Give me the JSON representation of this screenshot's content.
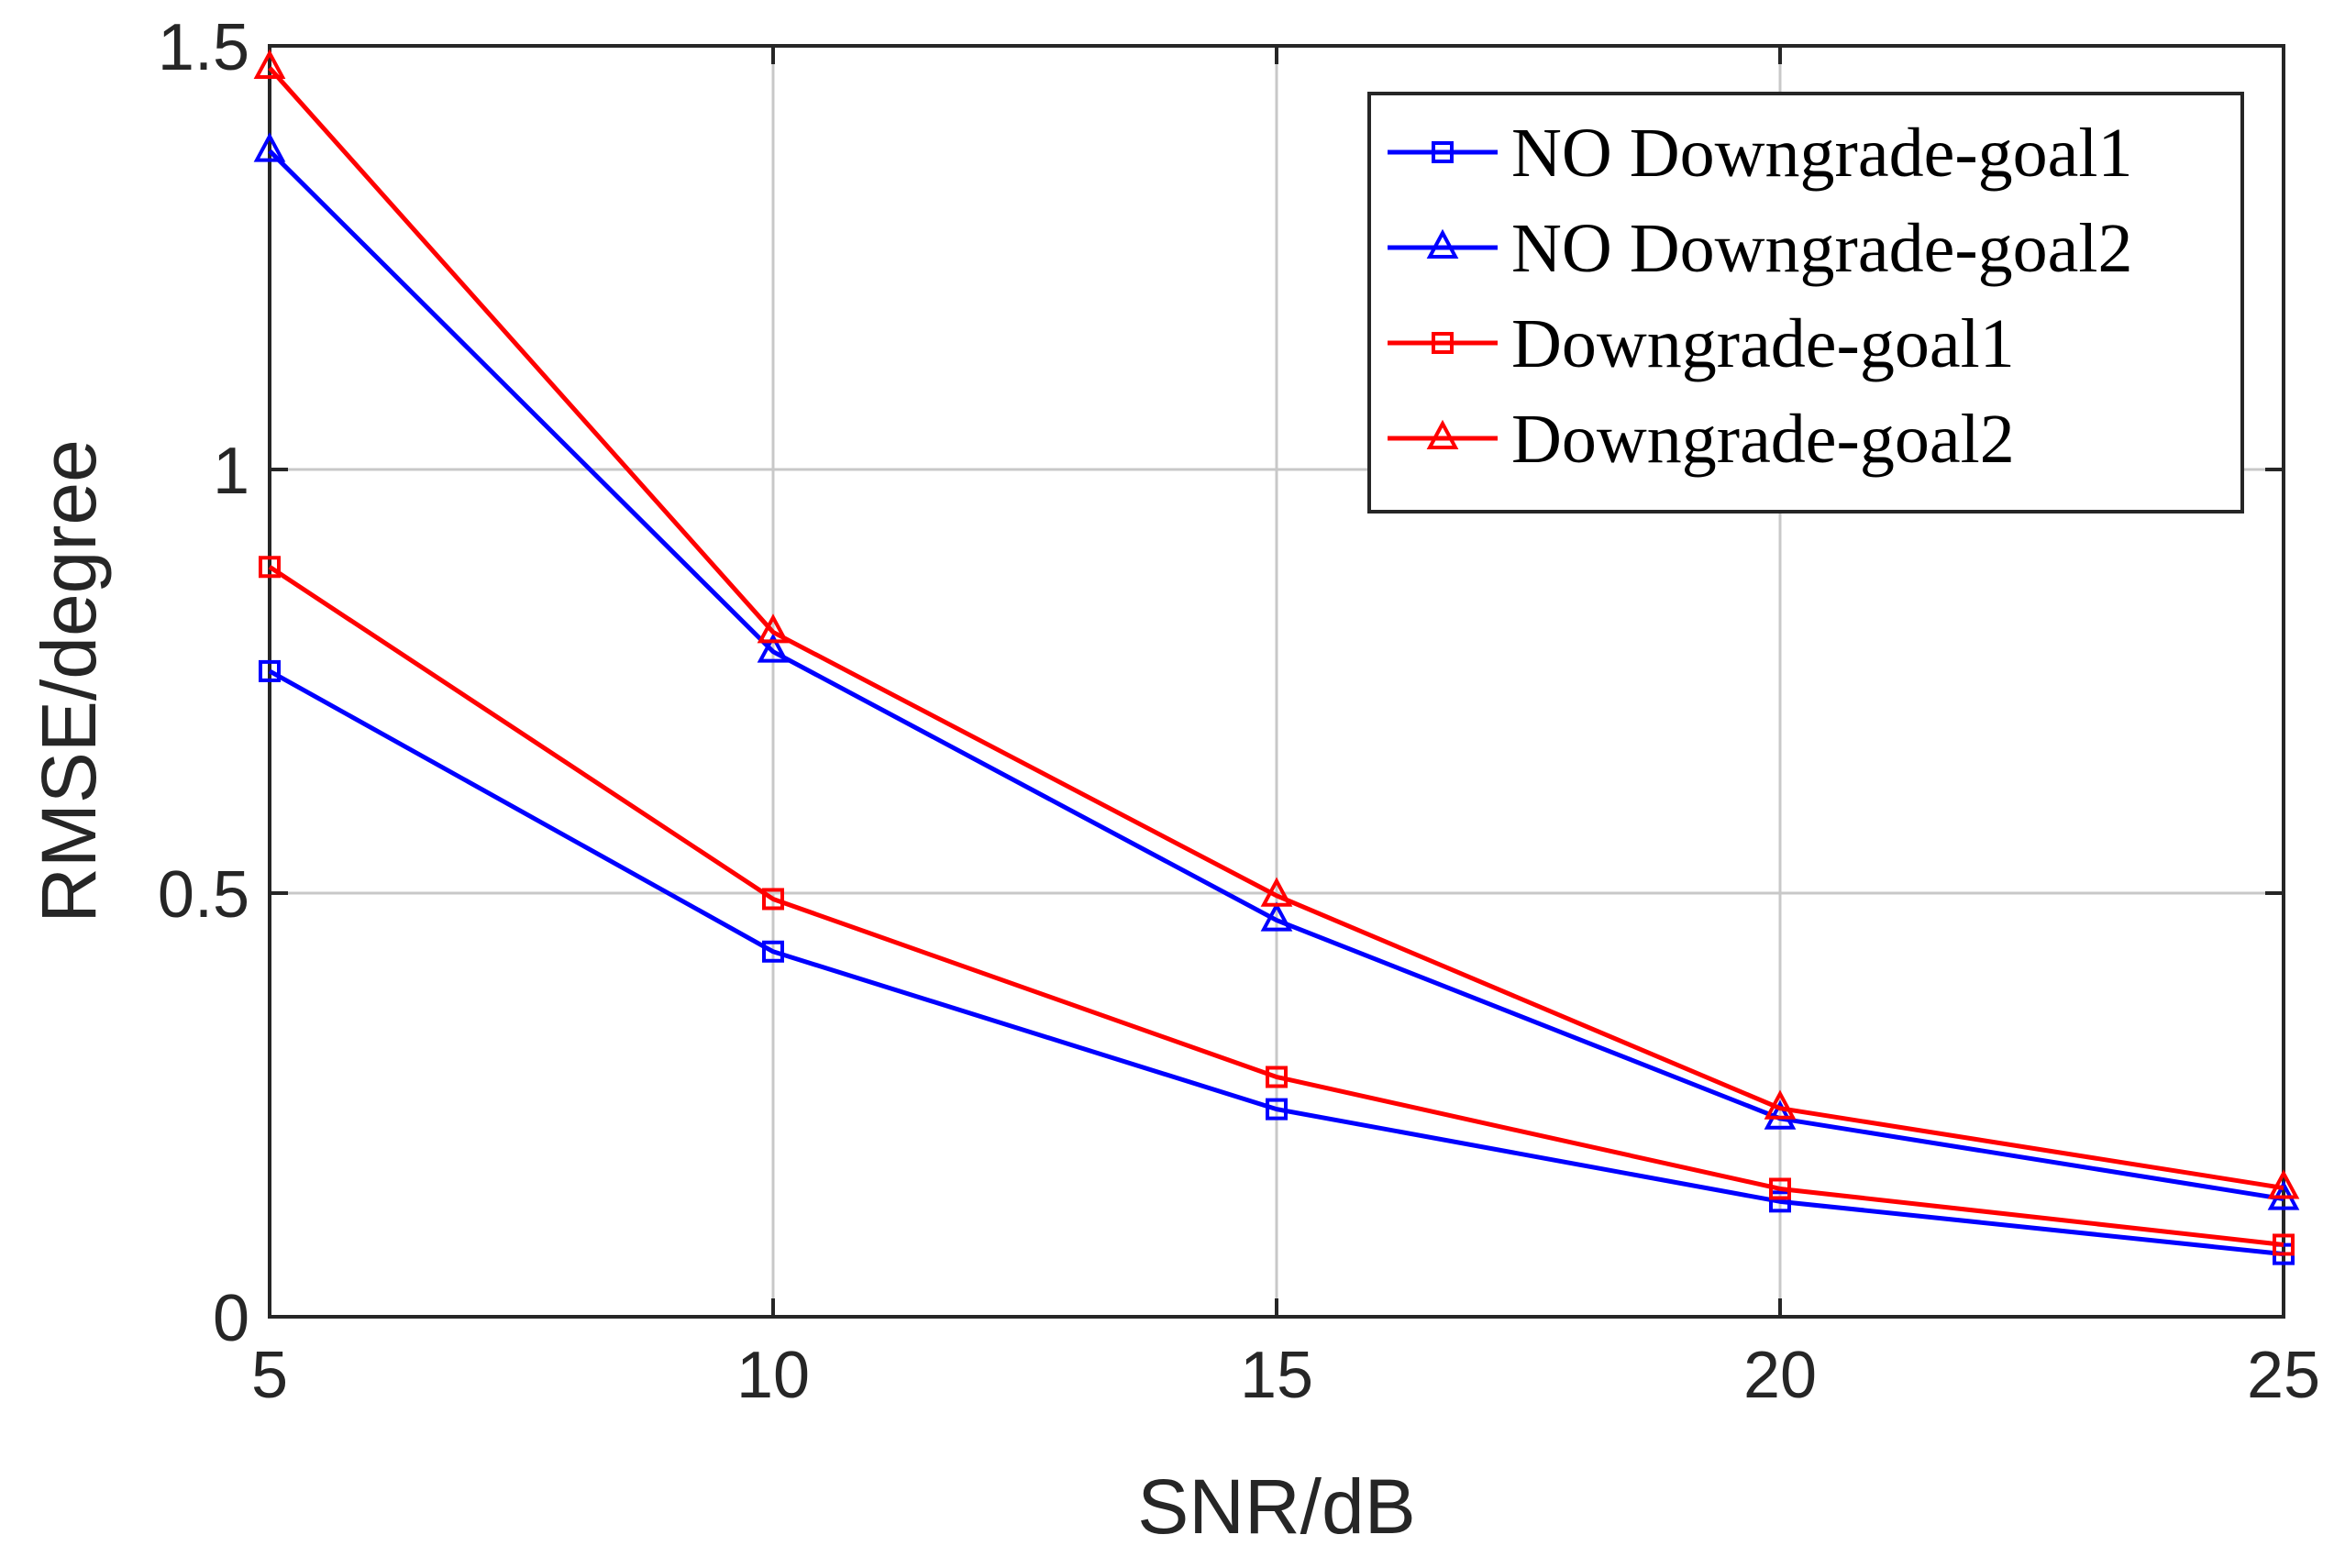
{
  "chart_data": {
    "type": "line",
    "title": "",
    "xlabel": "SNR/dB",
    "ylabel": "RMSE/degree",
    "x": [
      5,
      10,
      15,
      20,
      25
    ],
    "xlim": [
      5,
      25
    ],
    "ylim": [
      0,
      1.5
    ],
    "xticks": [
      5,
      10,
      15,
      20,
      25
    ],
    "xtick_labels": [
      "5",
      "10",
      "15",
      "20",
      "25"
    ],
    "yticks": [
      0,
      0.5,
      1,
      1.5
    ],
    "ytick_labels": [
      "0",
      "0.5",
      "1",
      "1.5"
    ],
    "grid": true,
    "legend_position": "top-right",
    "series": [
      {
        "name": "NO Downgrade-goal1",
        "color": "#0000ff",
        "marker": "square",
        "values": [
          0.762,
          0.431,
          0.245,
          0.136,
          0.074
        ]
      },
      {
        "name": "NO Downgrade-goal2",
        "color": "#0000ff",
        "marker": "triangle",
        "values": [
          1.376,
          0.785,
          0.468,
          0.234,
          0.139
        ]
      },
      {
        "name": "Downgrade-goal1",
        "color": "#ff0000",
        "marker": "square",
        "values": [
          0.885,
          0.493,
          0.283,
          0.151,
          0.085
        ]
      },
      {
        "name": "Downgrade-goal2",
        "color": "#ff0000",
        "marker": "triangle",
        "values": [
          1.474,
          0.808,
          0.497,
          0.246,
          0.152
        ]
      }
    ]
  }
}
